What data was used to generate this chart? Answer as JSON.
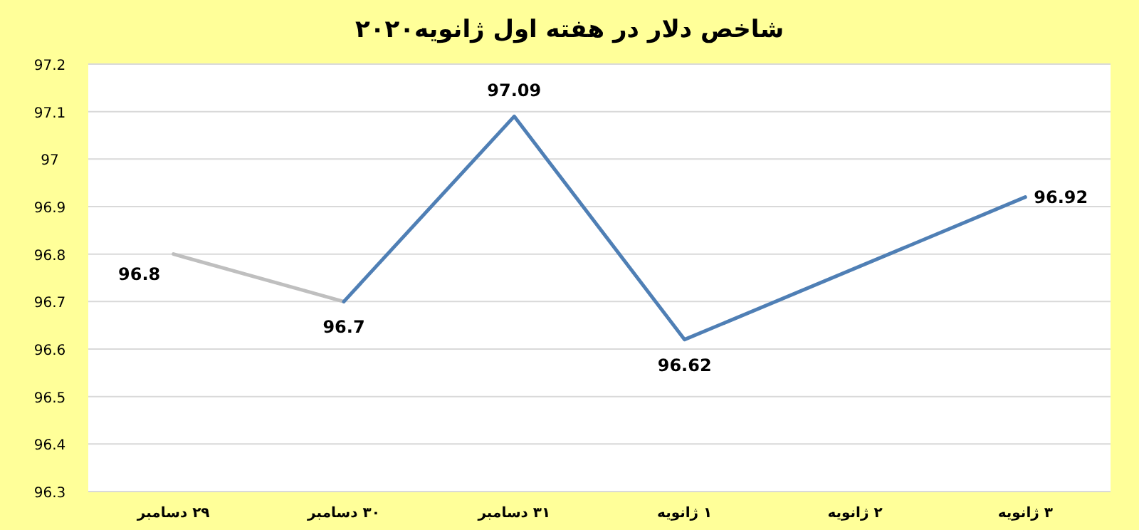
{
  "chart_data": {
    "type": "line",
    "title": "شاخص دلار در هفته اول ژانویه۲۰۲۰",
    "categories": [
      "۲۹ دسامبر",
      "۳۰ دسامبر",
      "۳۱ دسامبر",
      "۱ ژانویه",
      "۲ ژانویه",
      "۳ ژانویه"
    ],
    "series": [
      {
        "color": "#bfbfbf",
        "values": [
          96.8,
          96.7,
          null,
          null,
          null,
          null
        ],
        "value_labels": [
          "96.8",
          null,
          null,
          null,
          null,
          null
        ]
      },
      {
        "color": "#4f7fb5",
        "values": [
          null,
          96.7,
          97.09,
          96.62,
          null,
          96.92
        ],
        "value_labels": [
          null,
          "96.7",
          "97.09",
          "96.62",
          null,
          "96.92"
        ]
      }
    ],
    "ylim": [
      96.3,
      97.2
    ],
    "yticks": [
      96.3,
      96.4,
      96.5,
      96.6,
      96.7,
      96.8,
      96.9,
      {
        "value": 97.0,
        "label": "97"
      },
      97.1,
      97.2
    ],
    "grid": "y",
    "marker": "none",
    "line_style": "solid"
  }
}
